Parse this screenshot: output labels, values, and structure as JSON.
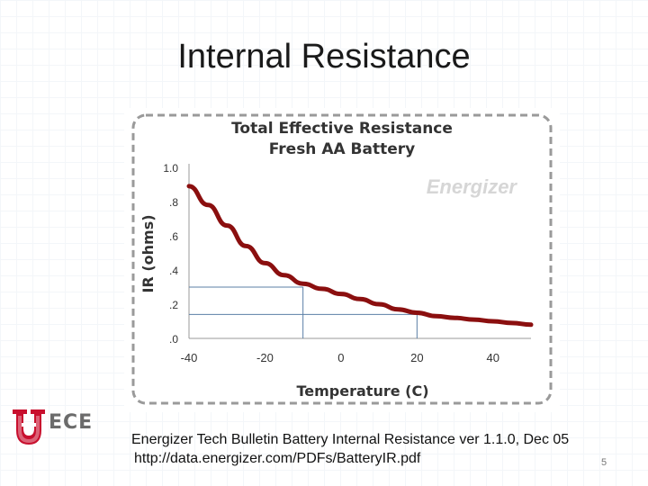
{
  "slide": {
    "title": "Internal Resistance",
    "caption_line1": "Energizer Tech Bulletin Battery Internal Resistance ver 1.1.0, Dec 05",
    "caption_line2": "http://data.energizer.com/PDFs/BatteryIR.pdf",
    "page_number": "5",
    "logo_text": "ECE"
  },
  "chart_data": {
    "type": "line",
    "title": "Total Effective Resistance",
    "subtitle": "Fresh AA Battery",
    "xlabel": "Temperature (C)",
    "ylabel": "IR (ohms)",
    "watermark": "Energizer",
    "xlim": [
      -40,
      50
    ],
    "ylim": [
      0,
      1.0
    ],
    "x_ticks": [
      -40,
      -20,
      0,
      20,
      40
    ],
    "y_ticks": [
      0,
      0.2,
      0.4,
      0.6,
      0.8,
      1.0
    ],
    "y_tick_labels": [
      ".0",
      ".2",
      ".4",
      ".6",
      ".8",
      "1.0"
    ],
    "line_color": "#8b0f0f",
    "series": [
      {
        "x": [
          -40,
          -35,
          -30,
          -25,
          -20,
          -15,
          -10,
          -5,
          0,
          5,
          10,
          15,
          20,
          25,
          30,
          35,
          40,
          45,
          50
        ],
        "values": [
          0.89,
          0.78,
          0.66,
          0.54,
          0.44,
          0.37,
          0.32,
          0.29,
          0.26,
          0.23,
          0.2,
          0.17,
          0.15,
          0.13,
          0.12,
          0.11,
          0.1,
          0.09,
          0.08
        ]
      }
    ],
    "reference_lines": [
      {
        "x": -10,
        "y": 0.3
      },
      {
        "x": 20,
        "y": 0.14
      }
    ],
    "grid": false
  }
}
